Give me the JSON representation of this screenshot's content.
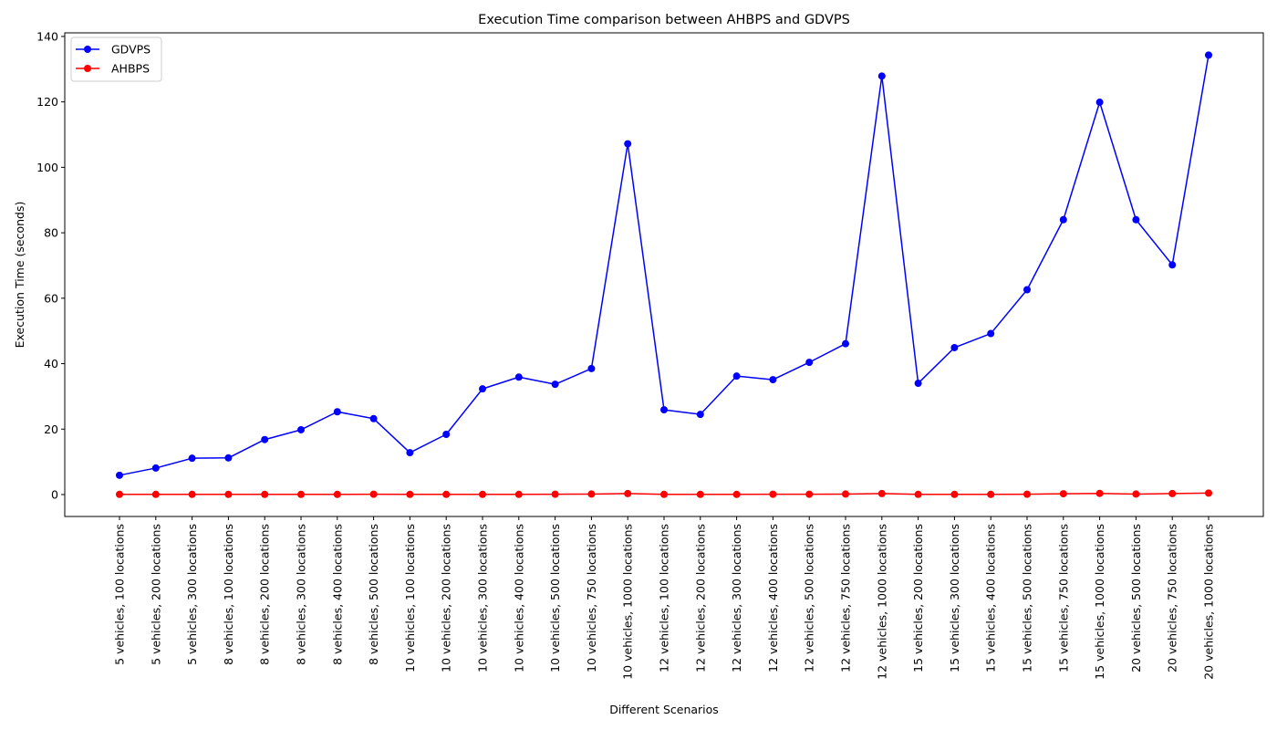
{
  "chart_data": {
    "type": "line",
    "title": "Execution Time comparison between AHBPS and GDVPS",
    "xlabel": "Different Scenarios",
    "ylabel": "Execution Time (seconds)",
    "ylim": [
      -6.7,
      141.1
    ],
    "yticks": [
      0,
      20,
      40,
      60,
      80,
      100,
      120,
      140
    ],
    "grid": false,
    "legend_position": "top-left",
    "categories": [
      "5 vehicles, 100 locations",
      "5 vehicles, 200 locations",
      "5 vehicles, 300 locations",
      "8 vehicles, 100 locations",
      "8 vehicles, 200 locations",
      "8 vehicles, 300 locations",
      "8 vehicles, 400 locations",
      "8 vehicles, 500 locations",
      "10 vehicles, 100 locations",
      "10 vehicles, 200 locations",
      "10 vehicles, 300 locations",
      "10 vehicles, 400 locations",
      "10 vehicles, 500 locations",
      "10 vehicles, 750 locations",
      "10 vehicles, 1000 locations",
      "12 vehicles, 100 locations",
      "12 vehicles, 200 locations",
      "12 vehicles, 300 locations",
      "12 vehicles, 400 locations",
      "12 vehicles, 500 locations",
      "12 vehicles, 750 locations",
      "12 vehicles, 1000 locations",
      "15 vehicles, 200 locations",
      "15 vehicles, 300 locations",
      "15 vehicles, 400 locations",
      "15 vehicles, 500 locations",
      "15 vehicles, 750 locations",
      "15 vehicles, 1000 locations",
      "20 vehicles, 500 locations",
      "20 vehicles, 750 locations",
      "20 vehicles, 1000 locations"
    ],
    "series": [
      {
        "name": "GDVPS",
        "color": "#0000ff",
        "values": [
          5.9,
          8.1,
          11.1,
          11.2,
          16.8,
          19.8,
          25.3,
          23.2,
          12.8,
          18.4,
          32.3,
          35.9,
          33.7,
          38.5,
          107.2,
          25.9,
          24.5,
          36.2,
          35.1,
          40.4,
          46.1,
          127.9,
          34.0,
          44.9,
          49.2,
          62.6,
          84.0,
          119.9,
          84.0,
          70.2,
          134.3
        ]
      },
      {
        "name": "AHBPS",
        "color": "#ff0000",
        "values": [
          0.05,
          0.05,
          0.05,
          0.05,
          0.05,
          0.05,
          0.05,
          0.1,
          0.05,
          0.05,
          0.05,
          0.05,
          0.1,
          0.15,
          0.3,
          0.05,
          0.05,
          0.05,
          0.1,
          0.1,
          0.15,
          0.3,
          0.05,
          0.05,
          0.05,
          0.1,
          0.25,
          0.35,
          0.15,
          0.3,
          0.45
        ]
      }
    ]
  }
}
